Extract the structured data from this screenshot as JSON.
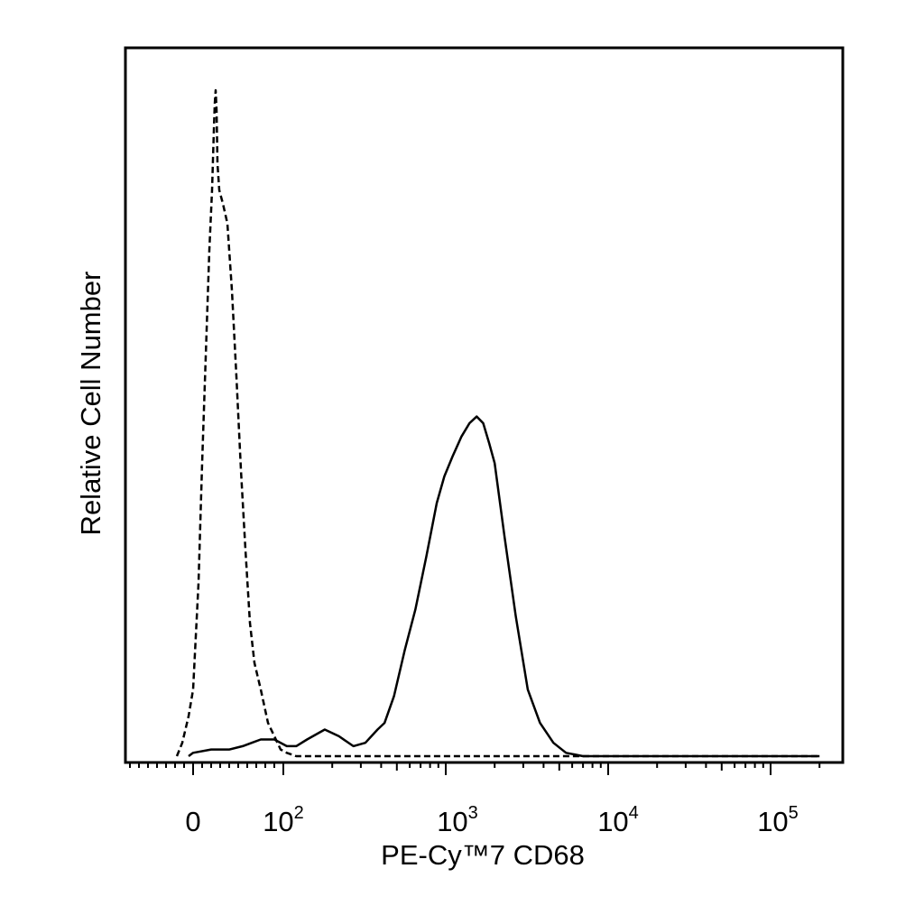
{
  "chart_data": {
    "type": "line",
    "xlabel": "PE-Cy™7 CD68",
    "ylabel": "Relative Cell Number",
    "x_scale": "biexponential (linear near 0, log above 10^2)",
    "xlim": [
      -30,
      200000
    ],
    "ylim": [
      0,
      100
    ],
    "grid": false,
    "y_ticks_shown": false,
    "x_tick_labels": [
      {
        "base": "0",
        "exp": ""
      },
      {
        "base": "10",
        "exp": "2"
      },
      {
        "base": "10",
        "exp": "3"
      },
      {
        "base": "10",
        "exp": "4"
      },
      {
        "base": "10",
        "exp": "5"
      }
    ],
    "series": [
      {
        "style": "dashed",
        "x": [
          -18,
          -12,
          -5,
          0,
          6,
          10,
          14,
          18,
          21,
          23,
          24,
          25,
          26,
          27,
          29,
          33,
          38,
          43,
          48,
          53,
          58,
          63,
          68,
          75,
          83,
          90,
          97,
          105,
          120,
          200,
          1000,
          10000,
          200000
        ],
        "y": [
          0,
          2,
          6,
          10,
          26,
          44,
          60,
          76,
          85,
          94,
          98,
          100,
          97,
          89,
          85,
          83,
          80,
          70,
          57,
          43,
          31,
          20,
          14,
          10,
          5,
          3,
          1,
          0.5,
          0,
          0,
          0,
          0,
          0
        ]
      },
      {
        "style": "solid",
        "x": [
          -5,
          0,
          20,
          40,
          55,
          65,
          75,
          90,
          105,
          120,
          140,
          180,
          220,
          270,
          320,
          380,
          420,
          480,
          560,
          650,
          760,
          880,
          980,
          1100,
          1250,
          1400,
          1550,
          1700,
          1850,
          2000,
          2300,
          2700,
          3200,
          3800,
          4600,
          5500,
          7000,
          20000,
          200000
        ],
        "y": [
          0,
          0.5,
          1,
          1,
          1.5,
          2,
          2.5,
          2.5,
          1.5,
          1.5,
          2.5,
          4,
          3,
          1.5,
          2,
          4,
          5,
          9,
          16,
          22,
          30,
          38,
          42,
          45,
          48,
          50,
          51,
          50,
          47,
          44,
          33,
          21,
          10,
          5,
          2,
          0.5,
          0,
          0,
          0
        ]
      }
    ]
  }
}
